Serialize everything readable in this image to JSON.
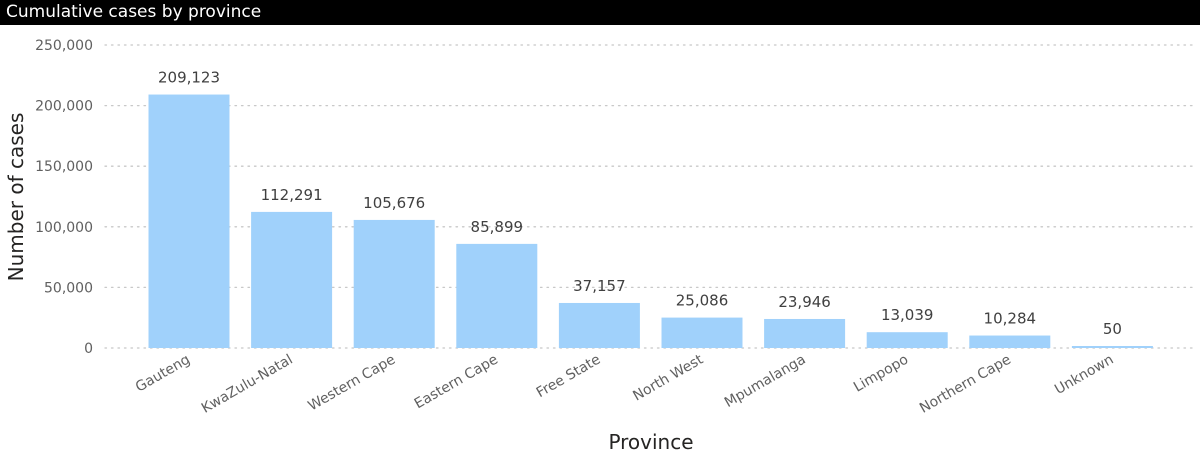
{
  "chart_data": {
    "type": "bar",
    "title": "Cumulative cases by province",
    "xlabel": "Province",
    "ylabel": "Number of cases",
    "categories": [
      "Gauteng",
      "KwaZulu-Natal",
      "Western Cape",
      "Eastern Cape",
      "Free State",
      "North West",
      "Mpumalanga",
      "Limpopo",
      "Northern Cape",
      "Unknown"
    ],
    "values": [
      209123,
      112291,
      105676,
      85899,
      37157,
      25086,
      23946,
      13039,
      10284,
      50
    ],
    "data_labels": [
      "209,123",
      "112,291",
      "105,676",
      "85,899",
      "37,157",
      "25,086",
      "23,946",
      "13,039",
      "10,284",
      "50"
    ],
    "ylim": [
      0,
      250000
    ],
    "yticks": [
      0,
      50000,
      100000,
      150000,
      200000,
      250000
    ],
    "ytick_labels": [
      "0",
      "50,000",
      "100,000",
      "150,000",
      "200,000",
      "250,000"
    ],
    "grid": "horizontal-dotted",
    "legend": "none",
    "colors": {
      "bar": "#a0d1fb",
      "title_bg": "#000000",
      "title_text": "#ffffff",
      "grid": "#c8c8c8"
    }
  }
}
